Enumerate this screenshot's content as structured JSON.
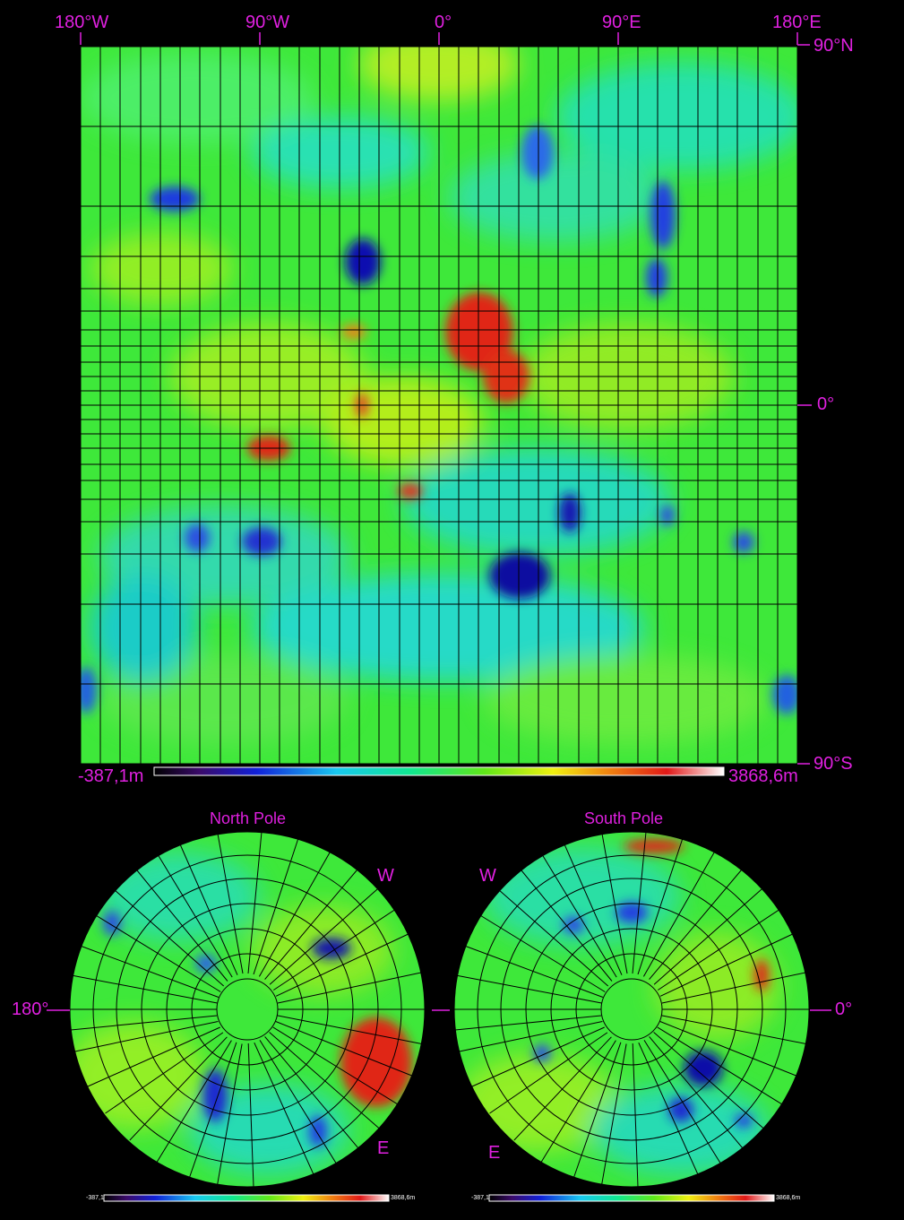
{
  "main_map": {
    "lon_labels": [
      "180°W",
      "90°W",
      "0°",
      "90°E",
      "180°E"
    ],
    "lat_labels": [
      "90°N",
      "0°",
      "90°S"
    ],
    "scale_min": "-387,1m",
    "scale_max": "3868,6m"
  },
  "north_pole": {
    "title": "North Pole",
    "dir_w": "W",
    "dir_e": "E",
    "left_label": "180°",
    "scale_min": "-387,1",
    "scale_max": "3868,6m"
  },
  "south_pole": {
    "title": "South Pole",
    "dir_w": "W",
    "dir_e": "E",
    "right_label": "0°",
    "scale_min": "-387,1",
    "scale_max": "3868,6m"
  },
  "colors": {
    "label": "#e020e0",
    "background": "#000000",
    "base_terrain": "#3ee83a",
    "low_terrain": "#1414c8",
    "high_terrain": "#e01414"
  }
}
